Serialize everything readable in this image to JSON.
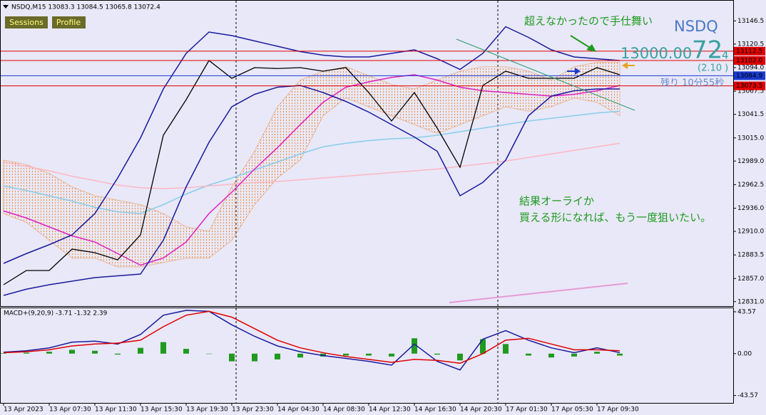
{
  "chart_data": [
    {
      "type": "line",
      "title": "NSDQ,M15  13083.3 13084.5 13065.8 13072.4",
      "buttons": [
        "Sessions",
        "Profile"
      ],
      "symbol": "NSDQ",
      "price_display": [
        "13000.00",
        "72",
        "4"
      ],
      "change": "(2.10 )",
      "countdown": "残り 10分55秒",
      "annotations": [
        {
          "text": "超えなかったので手仕舞い",
          "color": "#1f9a1f"
        },
        {
          "text": "結果オーライか",
          "color": "#1f9a1f"
        },
        {
          "text": "買える形になれば、もう一度狙いたい。",
          "color": "#1f9a1f"
        }
      ],
      "categories": [
        "13 Apr 2023",
        null,
        "13 Apr 07:30",
        null,
        "13 Apr 11:30",
        null,
        "13 Apr 15:30",
        null,
        "13 Apr 19:30",
        null,
        "13 Apr 23:30",
        null,
        "14 Apr 04:30",
        null,
        "14 Apr 08:30",
        null,
        "14 Apr 12:30",
        null,
        "14 Apr 16:30",
        null,
        "14 Apr 20:30",
        null,
        "17 Apr 01:30",
        null,
        "17 Apr 05:30",
        null,
        "17 Apr 09:30",
        null
      ],
      "cloud": {
        "color": "#f08a3c",
        "upper": [
          12990,
          12985,
          12975,
          12960,
          12950,
          12945,
          12940,
          12930,
          12915,
          12910,
          12960,
          13000,
          13050,
          13080,
          13090,
          13095,
          13085,
          13075,
          13070,
          13080,
          13090,
          13095,
          13095,
          13090,
          13080,
          13095,
          13100,
          13100
        ],
        "lower": [
          12930,
          12920,
          12900,
          12880,
          12880,
          12870,
          12870,
          12875,
          12880,
          12880,
          12900,
          12940,
          12970,
          12990,
          13040,
          13060,
          13050,
          13040,
          13030,
          13020,
          13030,
          13040,
          13050,
          13045,
          13050,
          13060,
          13055,
          13040
        ]
      },
      "series": [
        {
          "color": "#87ceeb",
          "values": [
            12961,
            12956,
            12950,
            12944,
            12937,
            12932,
            12930,
            12940,
            12952,
            12962,
            12970,
            12979,
            12988,
            12997,
            13005,
            13009,
            13012,
            13014,
            13015,
            13018,
            13022,
            13026,
            13030,
            13034,
            13037,
            13040,
            13043,
            13045
          ]
        },
        {
          "color": "#ffb6c1",
          "values": [
            12988,
            12983,
            12978,
            12972,
            12967,
            12962,
            12959,
            12958,
            12959,
            12961,
            12963,
            12965,
            12966,
            12968,
            12970,
            12972,
            12974,
            12976,
            12978,
            12980,
            12983,
            12986,
            12989,
            12993,
            12997,
            13001,
            13005,
            13009
          ]
        },
        {
          "color": "#e020c0",
          "values": [
            12933,
            12925,
            12915,
            12905,
            12898,
            12885,
            12872,
            12880,
            12898,
            12930,
            12954,
            12980,
            13004,
            13030,
            13055,
            13072,
            13078,
            13083,
            13086,
            13080,
            13072,
            13068,
            13066,
            13064,
            13062,
            13064,
            13068,
            13074
          ]
        },
        {
          "color": "#1a1aa0",
          "values": [
            12874,
            12885,
            12895,
            12906,
            12930,
            12970,
            13015,
            13070,
            13110,
            13134,
            13130,
            13124,
            13118,
            13112,
            13108,
            13106,
            13106,
            13110,
            13114,
            13104,
            13092,
            13110,
            13140,
            13128,
            13114,
            13106,
            13104,
            13102
          ]
        },
        {
          "color": "#1a1aa0",
          "values": [
            12838,
            12845,
            12850,
            12854,
            12858,
            12860,
            12862,
            12900,
            12960,
            13010,
            13050,
            13064,
            13072,
            13074,
            13066,
            13056,
            13044,
            13030,
            13016,
            13000,
            12950,
            12965,
            12990,
            13040,
            13062,
            13068,
            13070,
            13070
          ]
        },
        {
          "color": "#000000",
          "values": [
            12850,
            12866,
            12866,
            12890,
            12886,
            12878,
            12906,
            13018,
            13058,
            13102,
            13082,
            13094,
            13093,
            13094,
            13090,
            13094,
            13066,
            13034,
            13066,
            13026,
            12982,
            13074,
            13090,
            13082,
            13082,
            13082,
            13094,
            13086
          ]
        }
      ],
      "price_lines": [
        {
          "value": 13112.5,
          "color": "#e00000"
        },
        {
          "value": 13102,
          "label": "13102.0",
          "color": "#e00000"
        },
        {
          "value": 13084.9,
          "color": "#1a3ad0"
        },
        {
          "value": 13073.5,
          "color": "#e00000"
        }
      ],
      "ylim": [
        12826,
        13166
      ],
      "yticks": [
        13146.5,
        13120.5,
        {
          "value": 13094,
          "label": "13094.0"
        },
        13067.5,
        13041.5,
        {
          "value": 13015,
          "label": "13015.0"
        },
        {
          "value": 12989,
          "label": "12989.0"
        },
        12962.5,
        {
          "value": 12936,
          "label": "12936.0"
        },
        {
          "value": 12910,
          "label": "12910.0"
        },
        12883.5,
        {
          "value": 12857,
          "label": "12857.0"
        },
        {
          "value": 12831,
          "label": "12831.0"
        }
      ]
    },
    {
      "type": "line",
      "title": "MACD+(9,20,9) -3.71 -1.32 2.39",
      "series": [
        {
          "type": "bar",
          "color": "#1f9a1f",
          "values": [
            0.5,
            1,
            2,
            4,
            3,
            -1,
            6,
            12,
            5,
            0,
            -8,
            -8,
            -6,
            -4,
            -3,
            -2,
            -2,
            -3,
            16,
            -1,
            -7,
            15,
            10,
            -2,
            -4,
            -3,
            2,
            -2
          ]
        },
        {
          "color": "#1a1aa0",
          "values": [
            1.5,
            3,
            6,
            12,
            13,
            10,
            20,
            40,
            45,
            44,
            30,
            18,
            8,
            2,
            -2,
            -5,
            -8,
            -12,
            10,
            -8,
            -17,
            15,
            24,
            14,
            6,
            1,
            6,
            1
          ]
        },
        {
          "color": "#e00000",
          "values": [
            1,
            2,
            4,
            8,
            10,
            11,
            14,
            28,
            40,
            44,
            38,
            26,
            14,
            6,
            1,
            -3,
            -6,
            -9,
            -6,
            -7,
            -10,
            0,
            14,
            16,
            10,
            4,
            4,
            3
          ]
        }
      ],
      "ylim": [
        -52,
        48
      ],
      "yticks": [
        43.57,
        {
          "value": 0,
          "label": "0.00"
        },
        -43.57
      ]
    }
  ]
}
